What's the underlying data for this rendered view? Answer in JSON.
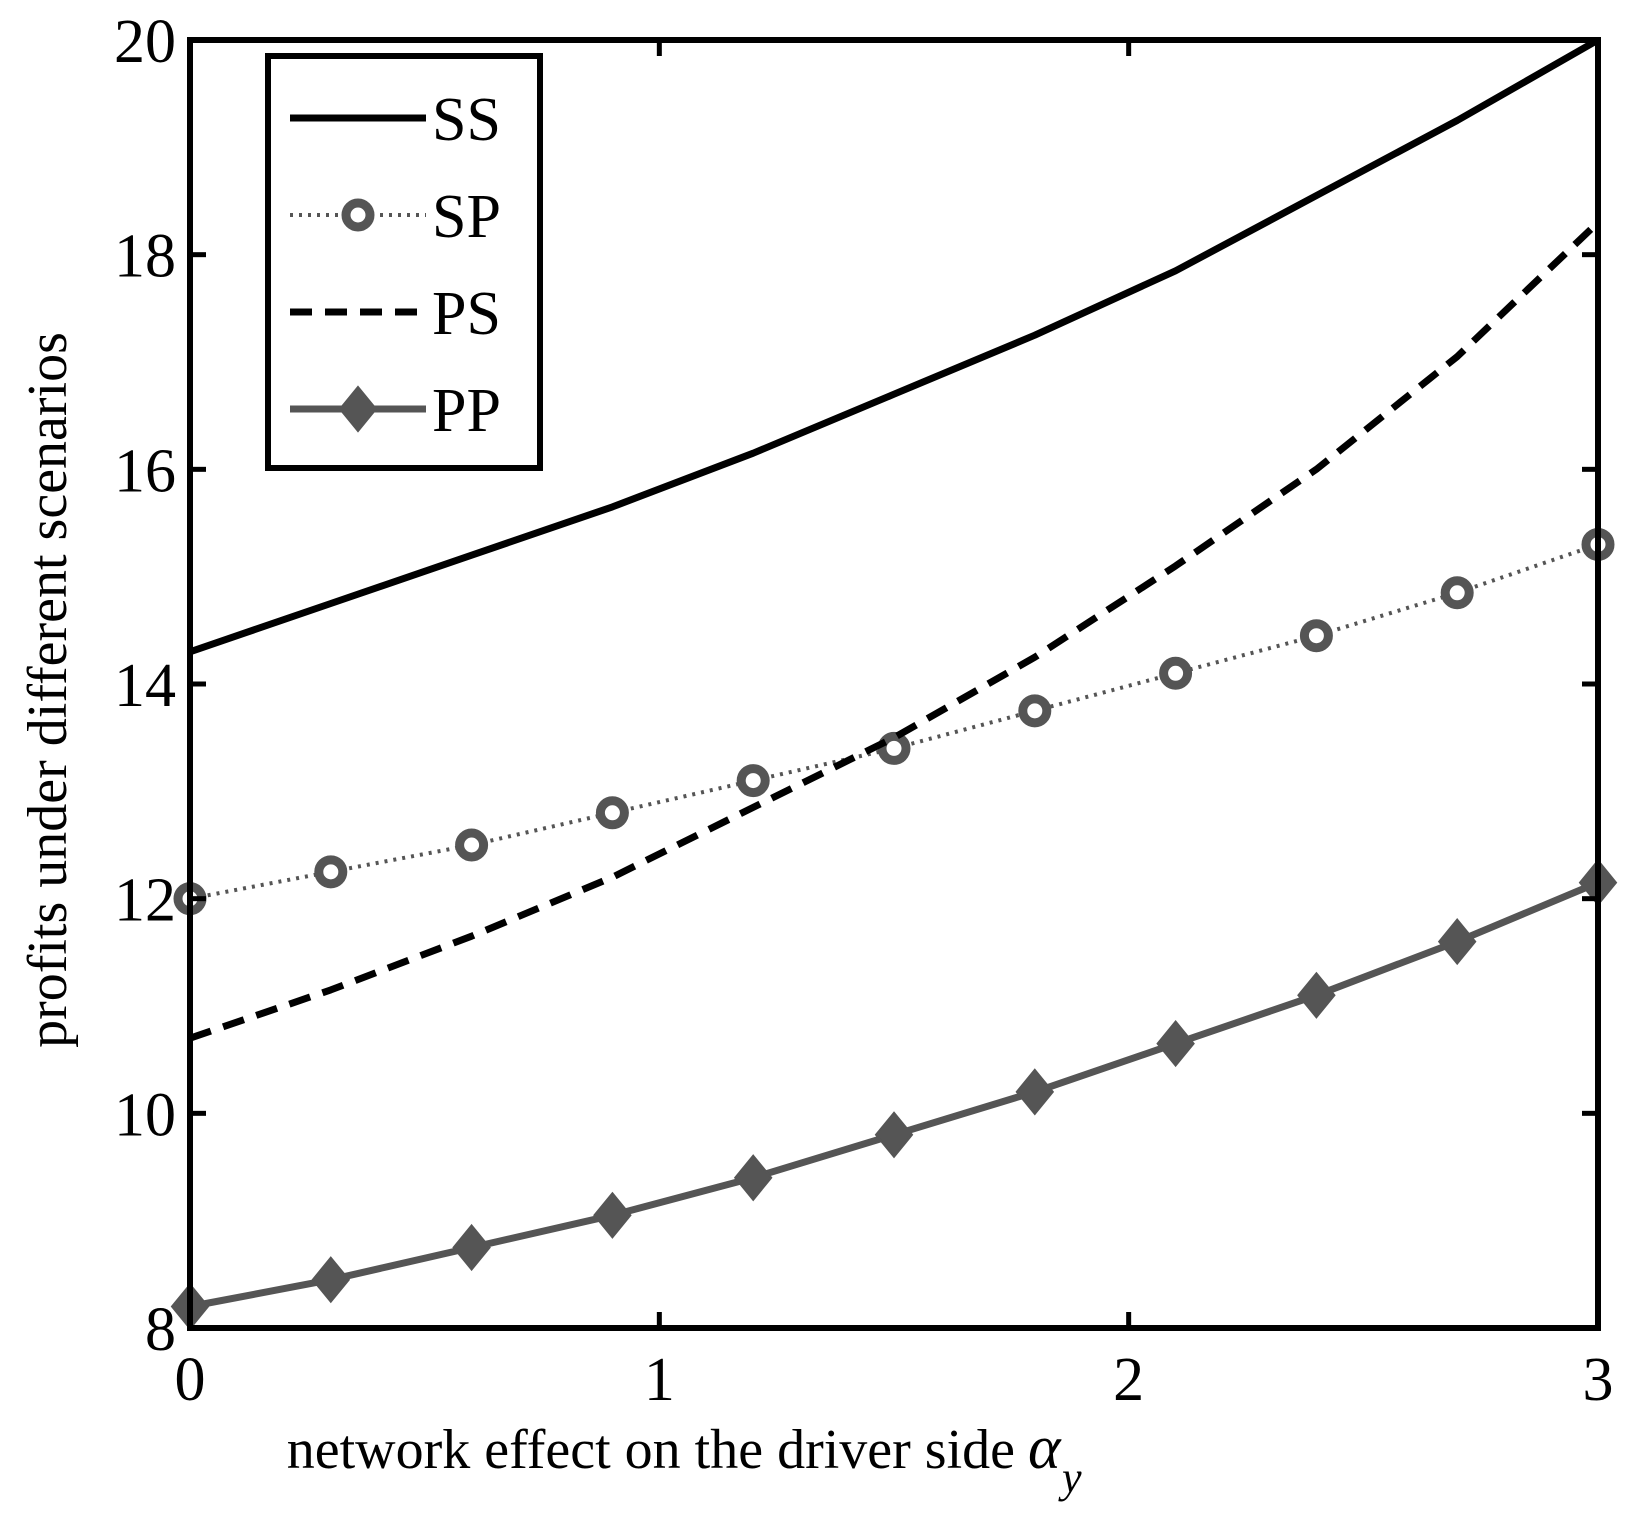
{
  "chart_data": {
    "type": "line",
    "title": "",
    "xlabel": "network effect on the driver side",
    "xlabel_symbol": "α",
    "xlabel_subscript": "y",
    "ylabel": "profits under different scenarios",
    "xlim": [
      0,
      3
    ],
    "ylim": [
      8,
      20
    ],
    "xticks": [
      0,
      1,
      2,
      3
    ],
    "yticks": [
      8,
      10,
      12,
      14,
      16,
      18,
      20
    ],
    "grid": false,
    "legend_position": "top-left",
    "series": [
      {
        "name": "SS",
        "style": "solid",
        "color": "#000000",
        "marker": "none",
        "x": [
          0,
          0.3,
          0.6,
          0.9,
          1.2,
          1.5,
          1.8,
          2.1,
          2.4,
          2.7,
          3.0
        ],
        "y": [
          14.3,
          14.75,
          15.2,
          15.65,
          16.15,
          16.7,
          17.25,
          17.85,
          18.55,
          19.25,
          20.0
        ]
      },
      {
        "name": "SP",
        "style": "dotted",
        "color": "#555555",
        "marker": "circle",
        "x": [
          0,
          0.3,
          0.6,
          0.9,
          1.2,
          1.5,
          1.8,
          2.1,
          2.4,
          2.7,
          3.0
        ],
        "y": [
          12.0,
          12.25,
          12.5,
          12.8,
          13.1,
          13.4,
          13.75,
          14.1,
          14.45,
          14.85,
          15.3
        ]
      },
      {
        "name": "PS",
        "style": "dashed",
        "color": "#000000",
        "marker": "none",
        "x": [
          0,
          0.3,
          0.6,
          0.9,
          1.2,
          1.5,
          1.8,
          2.1,
          2.4,
          2.7,
          3.0
        ],
        "y": [
          10.7,
          11.15,
          11.65,
          12.2,
          12.85,
          13.5,
          14.25,
          15.1,
          16.0,
          17.05,
          18.3
        ]
      },
      {
        "name": "PP",
        "style": "solid",
        "color": "#555555",
        "marker": "diamond",
        "x": [
          0,
          0.3,
          0.6,
          0.9,
          1.2,
          1.5,
          1.8,
          2.1,
          2.4,
          2.7,
          3.0
        ],
        "y": [
          8.2,
          8.45,
          8.75,
          9.05,
          9.4,
          9.8,
          10.2,
          10.65,
          11.1,
          11.6,
          12.15
        ]
      }
    ]
  }
}
